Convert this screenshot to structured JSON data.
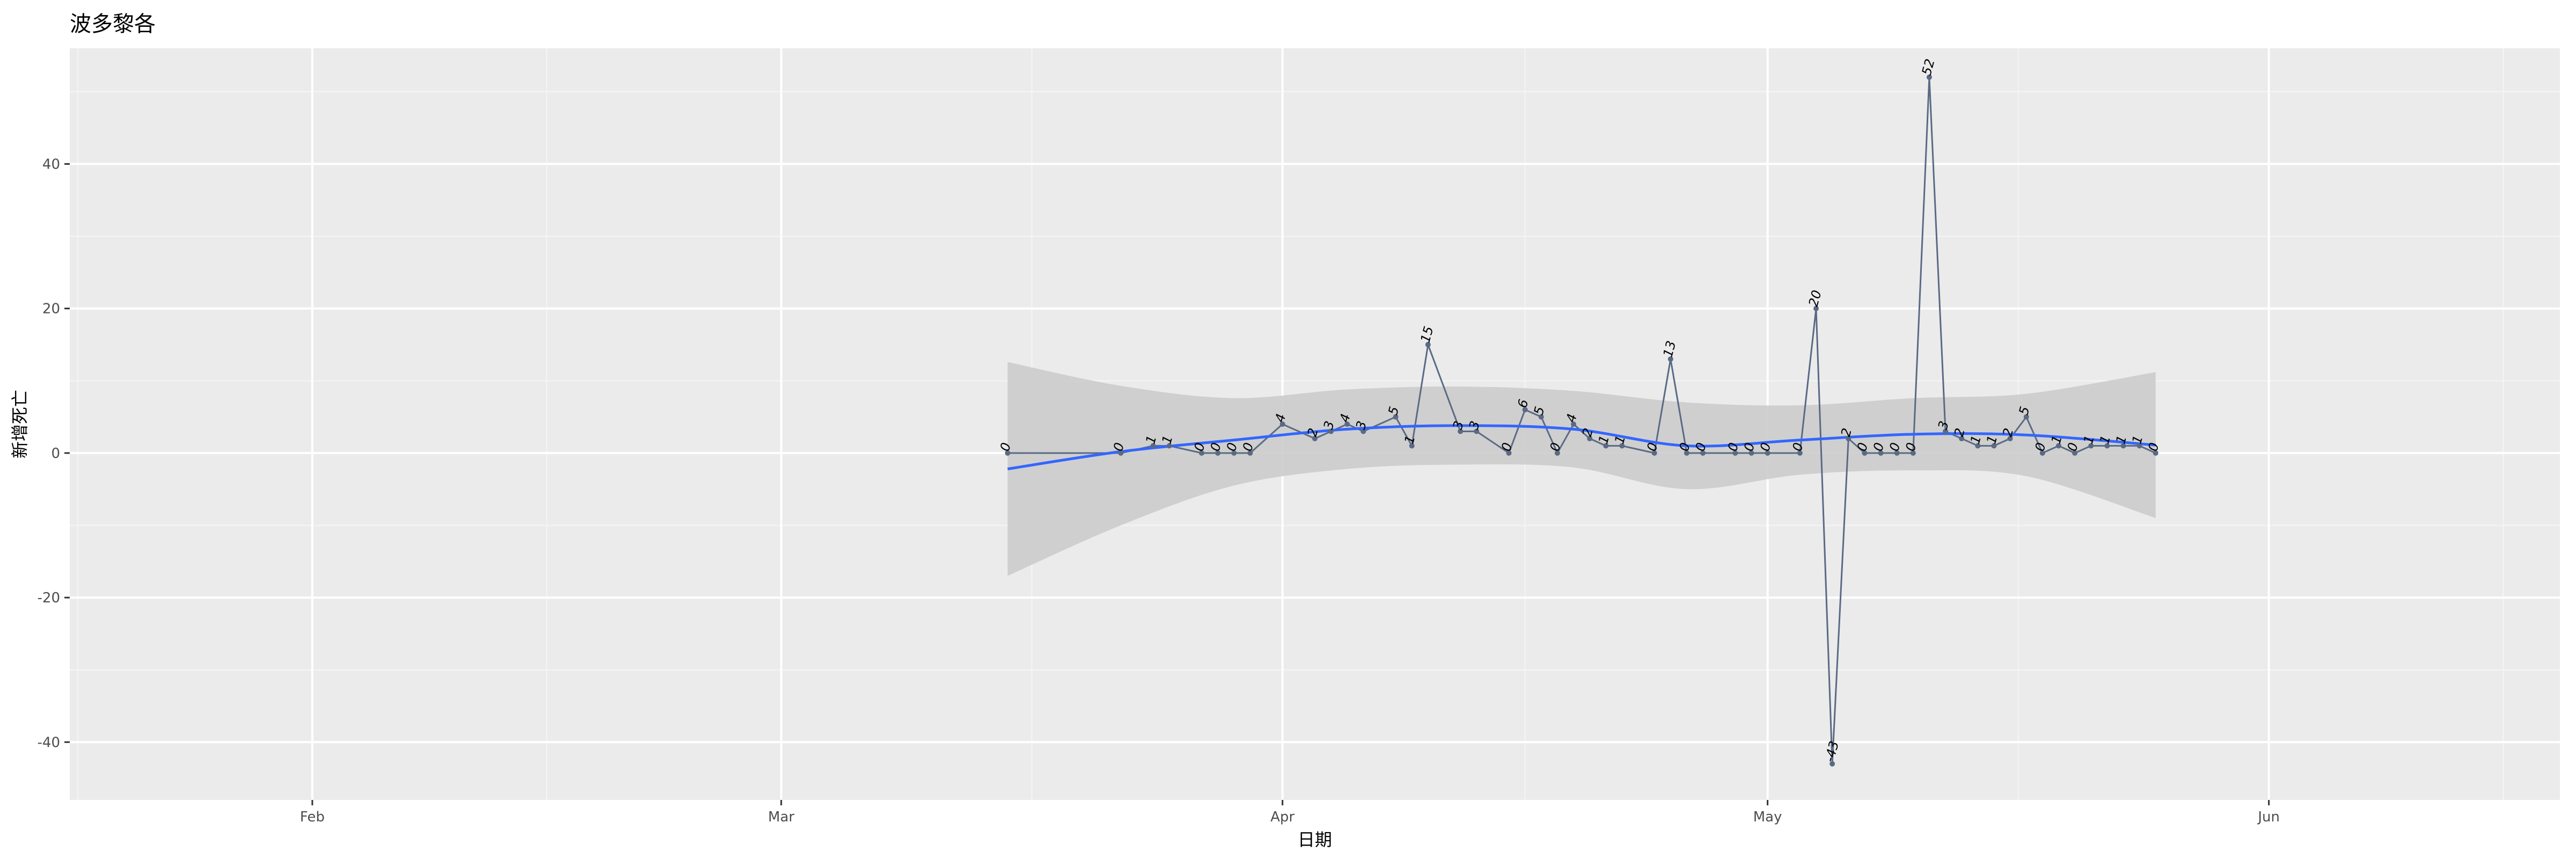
{
  "chart_data": {
    "type": "line",
    "title": "波多黎各",
    "xlabel": "日期",
    "ylabel": "新增死亡",
    "x_ticks": [
      "Feb",
      "Mar",
      "Apr",
      "May",
      "Jun"
    ],
    "y_ticks": [
      -40,
      -20,
      0,
      20,
      40
    ],
    "xlim": [
      "2020-01-17",
      "2020-06-19"
    ],
    "ylim": [
      -48,
      56
    ],
    "series": [
      {
        "x": [
          "2020-03-15",
          "2020-03-22",
          "2020-03-24",
          "2020-03-25",
          "2020-03-27",
          "2020-03-28",
          "2020-03-29",
          "2020-03-30",
          "2020-04-01",
          "2020-04-03",
          "2020-04-04",
          "2020-04-05",
          "2020-04-06",
          "2020-04-08",
          "2020-04-09",
          "2020-04-10",
          "2020-04-12",
          "2020-04-13",
          "2020-04-15",
          "2020-04-16",
          "2020-04-17",
          "2020-04-18",
          "2020-04-19",
          "2020-04-20",
          "2020-04-21",
          "2020-04-22",
          "2020-04-24",
          "2020-04-25",
          "2020-04-26",
          "2020-04-27",
          "2020-04-29",
          "2020-04-30",
          "2020-05-01",
          "2020-05-03",
          "2020-05-04",
          "2020-05-05",
          "2020-05-06",
          "2020-05-07",
          "2020-05-08",
          "2020-05-09",
          "2020-05-10",
          "2020-05-11",
          "2020-05-12",
          "2020-05-13",
          "2020-05-14",
          "2020-05-15",
          "2020-05-16",
          "2020-05-17",
          "2020-05-18",
          "2020-05-19",
          "2020-05-20",
          "2020-05-21",
          "2020-05-22",
          "2020-05-23",
          "2020-05-24",
          "2020-05-25"
        ],
        "y": [
          0,
          0,
          1,
          1,
          0,
          0,
          0,
          0,
          4,
          2,
          3,
          4,
          3,
          5,
          1,
          15,
          3,
          3,
          0,
          6,
          5,
          0,
          4,
          2,
          1,
          1,
          0,
          13,
          0,
          0,
          0,
          0,
          0,
          0,
          20,
          -43,
          2,
          0,
          0,
          0,
          0,
          52,
          3,
          2,
          1,
          1,
          2,
          5,
          0,
          1,
          0,
          1,
          1,
          1,
          1,
          0
        ]
      }
    ],
    "smooth": {
      "x": [
        "2020-03-15",
        "2020-03-22",
        "2020-03-29",
        "2020-04-05",
        "2020-04-12",
        "2020-04-19",
        "2020-04-26",
        "2020-05-03",
        "2020-05-10",
        "2020-05-17",
        "2020-05-25"
      ],
      "y": [
        -2.2,
        0.2,
        1.8,
        3.3,
        3.8,
        3.3,
        1.0,
        1.8,
        2.6,
        2.5,
        1.1
      ],
      "lower": [
        -17.0,
        -10.0,
        -4.5,
        -2.2,
        -1.6,
        -2.0,
        -5.0,
        -3.0,
        -2.4,
        -3.2,
        -9.0
      ],
      "upper": [
        12.6,
        9.3,
        7.6,
        8.8,
        9.2,
        8.6,
        7.0,
        6.6,
        7.6,
        8.2,
        11.2
      ]
    },
    "colors": {
      "panel": "#ebebeb",
      "grid_major": "#ffffff",
      "grid_minor": "#f5f5f5",
      "line": "#5a6a85",
      "smooth": "#3366ff",
      "ribbon": "#cccccc"
    },
    "grid": true
  }
}
